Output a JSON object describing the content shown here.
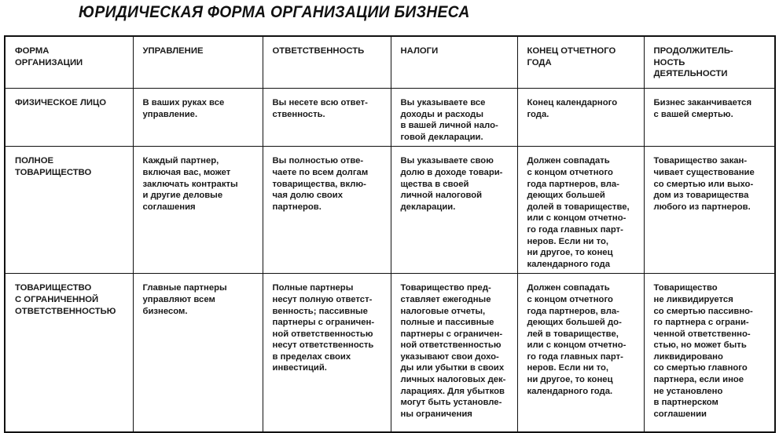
{
  "title": "ЮРИДИЧЕСКАЯ ФОРМА ОРГАНИЗАЦИИ БИЗНЕСА",
  "table": {
    "headers": [
      "ФОРМА\nОРГАНИЗАЦИИ",
      "УПРАВЛЕНИЕ",
      "ОТВЕТСТВЕННОСТЬ",
      "НАЛОГИ",
      "КОНЕЦ ОТЧЕТНОГО\nГОДА",
      "ПРОДОЛЖИТЕЛЬ-\nНОСТЬ\nДЕЯТЕЛЬНОСТИ"
    ],
    "rows": [
      [
        "ФИЗИЧЕСКОЕ ЛИЦО",
        "В ваших руках все\nуправление.",
        "Вы несете всю ответ-\nственность.",
        "Вы указываете все\nдоходы и расходы\nв вашей личной нало-\nговой декларации.",
        "Конец календарного\nгода.",
        "Бизнес заканчивается\nс вашей смертью."
      ],
      [
        "ПОЛНОЕ\nТОВАРИЩЕСТВО",
        "Каждый партнер,\nвключая вас, может\nзаключать контракты\nи другие деловые\nсоглашения",
        "Вы полностью отве-\nчаете по всем долгам\nтоварищества, вклю-\nчая долю своих\nпартнеров.",
        "Вы указываете свою\nдолю в доходе товари-\nщества в своей\nличной налоговой\nдекларации.",
        "Должен совпадать\nс концом отчетного\nгода партнеров, вла-\nдеющих большей\nдолей в товариществе,\nили с концом отчетно-\nго года главных парт-\nнеров. Если ни то,\nни другое, то конец\nкалендарного года",
        "Товарищество закан-\nчивает существование\nсо смертью или выхо-\nдом из товарищества\nлюбого из партнеров."
      ],
      [
        "ТОВАРИЩЕСТВО\nС ОГРАНИЧЕННОЙ\nОТВЕТСТВЕННОСТЬЮ",
        "Главные партнеры\nуправляют всем\nбизнесом.",
        "Полные партнеры\nнесут полную ответст-\nвенность; пассивные\nпартнеры с ограничен-\nной ответственностью\nнесут ответственность\nв пределах своих\nинвестиций.",
        "Товарищество пред-\nставляет ежегодные\nналоговые отчеты,\nполные и пассивные\nпартнеры с ограничен-\nной ответственностью\nуказывают свои дохо-\nды или убытки в своих\nличных налоговых дек-\nларациях. Для убытков\nмогут быть установле-\nны ограничения",
        "Должен совпадать\nс концом отчетного\nгода партнеров, вла-\nдеющих большей до-\nлей в товариществе,\nили с концом отчетно-\nго года главных парт-\nнеров. Если ни то,\nни другое, то конец\nкалендарного года.",
        "Товарищество\nне ликвидируется\nсо смертью пассивно-\nго партнера с ограни-\nченной ответственно-\nстью, но может быть\nликвидировано\nсо смертью главного\nпартнера, если иное\nне установлено\nв партнерском\nсоглашении"
      ]
    ]
  }
}
